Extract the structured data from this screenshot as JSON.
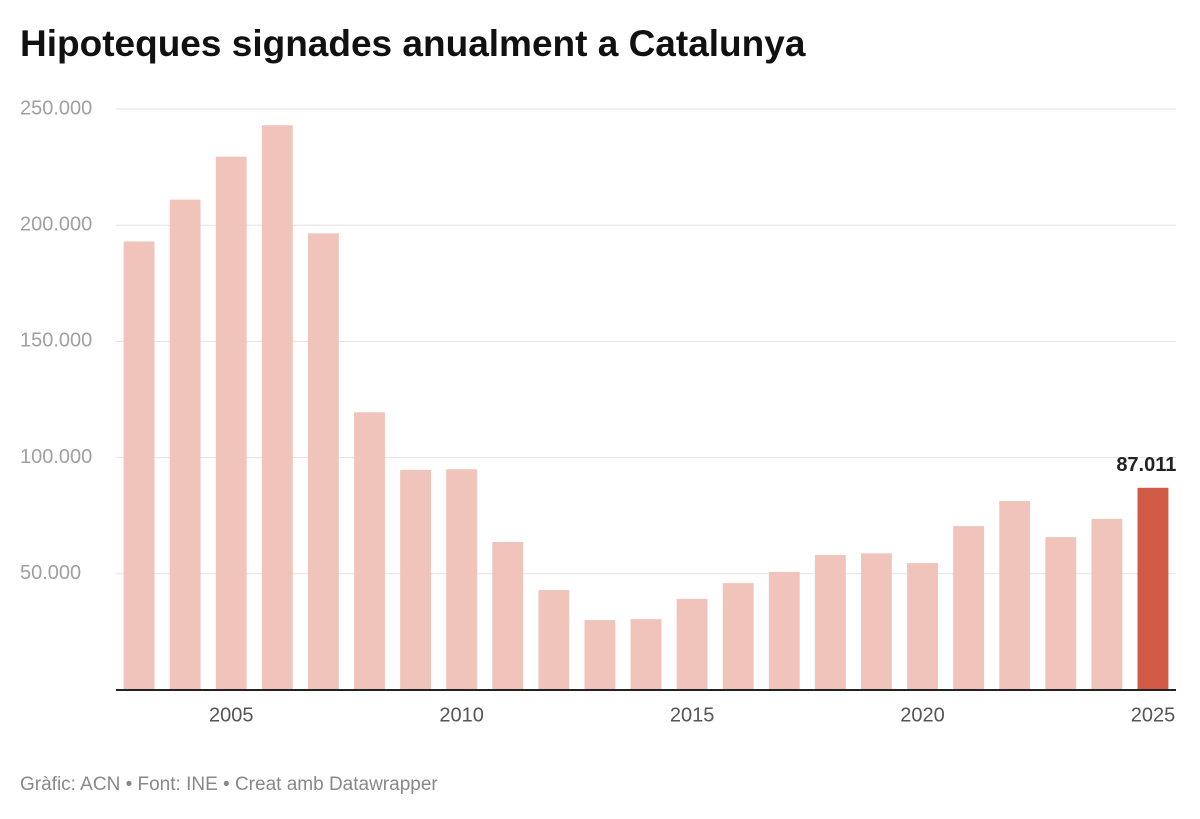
{
  "chart_data": {
    "type": "bar",
    "title": "Hipoteques signades anualment a Catalunya",
    "source": "Gràfic: ACN • Font: INE • Creat amb Datawrapper",
    "x": [
      2003,
      2004,
      2005,
      2006,
      2007,
      2008,
      2009,
      2010,
      2011,
      2012,
      2013,
      2014,
      2015,
      2016,
      2017,
      2018,
      2019,
      2020,
      2021,
      2022,
      2023,
      2024,
      2025
    ],
    "values": [
      193000,
      211000,
      229500,
      243000,
      196500,
      119500,
      94700,
      95000,
      63700,
      43000,
      30100,
      30500,
      39200,
      46000,
      50800,
      58100,
      58800,
      54600,
      70500,
      81300,
      65800,
      73600,
      87011
    ],
    "value_labels": [
      null,
      null,
      null,
      null,
      null,
      null,
      null,
      null,
      null,
      null,
      null,
      null,
      null,
      null,
      null,
      null,
      null,
      null,
      null,
      null,
      null,
      null,
      "87.011"
    ],
    "colors": [
      "#f0c4bb",
      "#f0c4bb",
      "#f0c4bb",
      "#f0c4bb",
      "#f0c4bb",
      "#f0c4bb",
      "#f0c4bb",
      "#f0c4bb",
      "#f0c4bb",
      "#f0c4bb",
      "#f0c4bb",
      "#f0c4bb",
      "#f0c4bb",
      "#f0c4bb",
      "#f0c4bb",
      "#f0c4bb",
      "#f0c4bb",
      "#f0c4bb",
      "#f0c4bb",
      "#f0c4bb",
      "#f0c4bb",
      "#f0c4bb",
      "#d05a43"
    ],
    "xlim": [
      2002.5,
      2025.5
    ],
    "xticks": [
      2005,
      2010,
      2015,
      2020,
      2025
    ],
    "ylim": [
      0,
      250000
    ],
    "yticks": [
      {
        "value": 50000,
        "label": "50.000"
      },
      {
        "value": 100000,
        "label": "100.000"
      },
      {
        "value": 150000,
        "label": "150.000"
      },
      {
        "value": 200000,
        "label": "200.000"
      },
      {
        "value": 250000,
        "label": "250.000"
      }
    ],
    "grid": true
  }
}
